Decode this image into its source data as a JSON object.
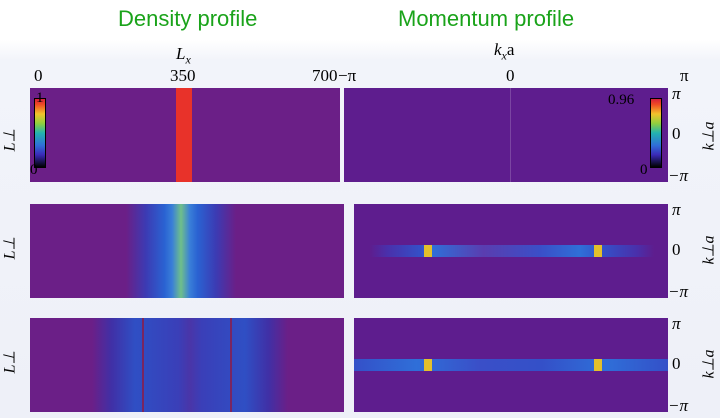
{
  "titles": {
    "left": "Density profile",
    "right": "Momentum profile"
  },
  "density_axis": {
    "label": "L",
    "label_sub": "x",
    "ticks": [
      "0",
      "350",
      "700"
    ]
  },
  "momentum_axis": {
    "label": "k",
    "label_sub": "x",
    "label_suffix": "a",
    "ticks": [
      "−π",
      "0",
      "π"
    ]
  },
  "row_label": "L⊥",
  "ky_label": "k⊥a",
  "ky_ticks": [
    "π",
    "0",
    "−π"
  ],
  "colorbars": {
    "density": {
      "max": "1",
      "min": "0"
    },
    "momentum": {
      "max": "0.96",
      "min": "0"
    }
  },
  "colors": {
    "background_low": "#6b1f87",
    "high": "#e3332a",
    "mid": "#2f6fd8"
  }
}
